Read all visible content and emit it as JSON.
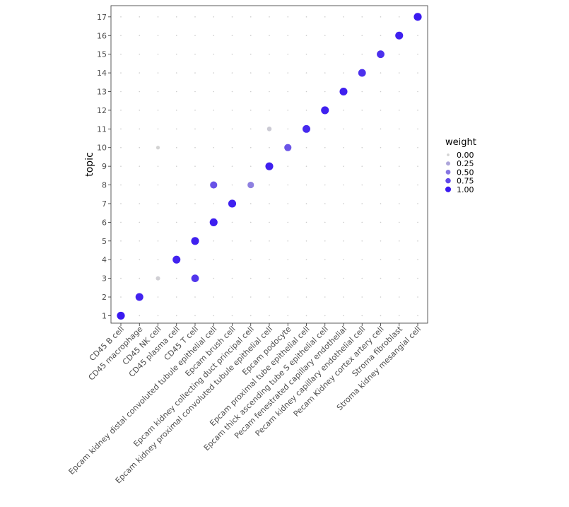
{
  "chart_data": {
    "type": "scatter",
    "title": "",
    "xlabel": "",
    "ylabel": "topic",
    "x_categories": [
      "CD45   B cell",
      "CD45   macrophage",
      "CD45   NK cell",
      "CD45   plasma cell",
      "CD45   T cell",
      "Epcam   kidney distal convoluted tubule epithelial cell",
      "Epcam   brush cell",
      "Epcam   kidney collecting duct principal cell",
      "Epcam   kidney proximal convoluted tubule epithelial cell",
      "Epcam   podocyte",
      "Epcam   proximal tube epithelial cell",
      "Epcam   thick ascending tube S epithelial cell",
      "Pecam   fenestrated capillary endothelial",
      "Pecam   kidney capillary endothelial cell",
      "Pecam   Kidney cortex artery cell",
      "Stroma   fibroblast",
      "Stroma   kidney mesangial cell"
    ],
    "y_ticks": [
      "1",
      "2",
      "3",
      "4",
      "5",
      "6",
      "7",
      "8",
      "9",
      "10",
      "11",
      "12",
      "13",
      "14",
      "15",
      "16",
      "17"
    ],
    "ylim": [
      0.6,
      17.6
    ],
    "grid": true,
    "points": [
      {
        "x": 1,
        "y": 1,
        "weight": 1.0
      },
      {
        "x": 2,
        "y": 2,
        "weight": 0.95
      },
      {
        "x": 3,
        "y": 3,
        "weight": 0.02
      },
      {
        "x": 5,
        "y": 3,
        "weight": 0.85
      },
      {
        "x": 4,
        "y": 4,
        "weight": 0.95
      },
      {
        "x": 5,
        "y": 5,
        "weight": 0.97
      },
      {
        "x": 6,
        "y": 6,
        "weight": 0.98
      },
      {
        "x": 7,
        "y": 7,
        "weight": 0.97
      },
      {
        "x": 6,
        "y": 8,
        "weight": 0.7
      },
      {
        "x": 8,
        "y": 8,
        "weight": 0.45
      },
      {
        "x": 9,
        "y": 9,
        "weight": 0.97
      },
      {
        "x": 3,
        "y": 10,
        "weight": 0.0
      },
      {
        "x": 10,
        "y": 10,
        "weight": 0.68
      },
      {
        "x": 9,
        "y": 11,
        "weight": 0.05
      },
      {
        "x": 11,
        "y": 11,
        "weight": 0.92
      },
      {
        "x": 12,
        "y": 12,
        "weight": 0.97
      },
      {
        "x": 13,
        "y": 13,
        "weight": 0.97
      },
      {
        "x": 14,
        "y": 14,
        "weight": 0.88
      },
      {
        "x": 15,
        "y": 15,
        "weight": 0.88
      },
      {
        "x": 16,
        "y": 16,
        "weight": 0.97
      },
      {
        "x": 17,
        "y": 17,
        "weight": 1.0
      }
    ],
    "legend": {
      "title": "weight",
      "placement": "right",
      "entries": [
        {
          "label": "0.00",
          "value": 0.0
        },
        {
          "label": "0.25",
          "value": 0.25
        },
        {
          "label": "0.50",
          "value": 0.5
        },
        {
          "label": "0.75",
          "value": 0.75
        },
        {
          "label": "1.00",
          "value": 1.0
        }
      ]
    },
    "colors": {
      "low": "#d3d3d3",
      "high": "#3a1af0",
      "panel_border": "#333333",
      "grid": "#cccccc",
      "background": "#ffffff"
    }
  }
}
